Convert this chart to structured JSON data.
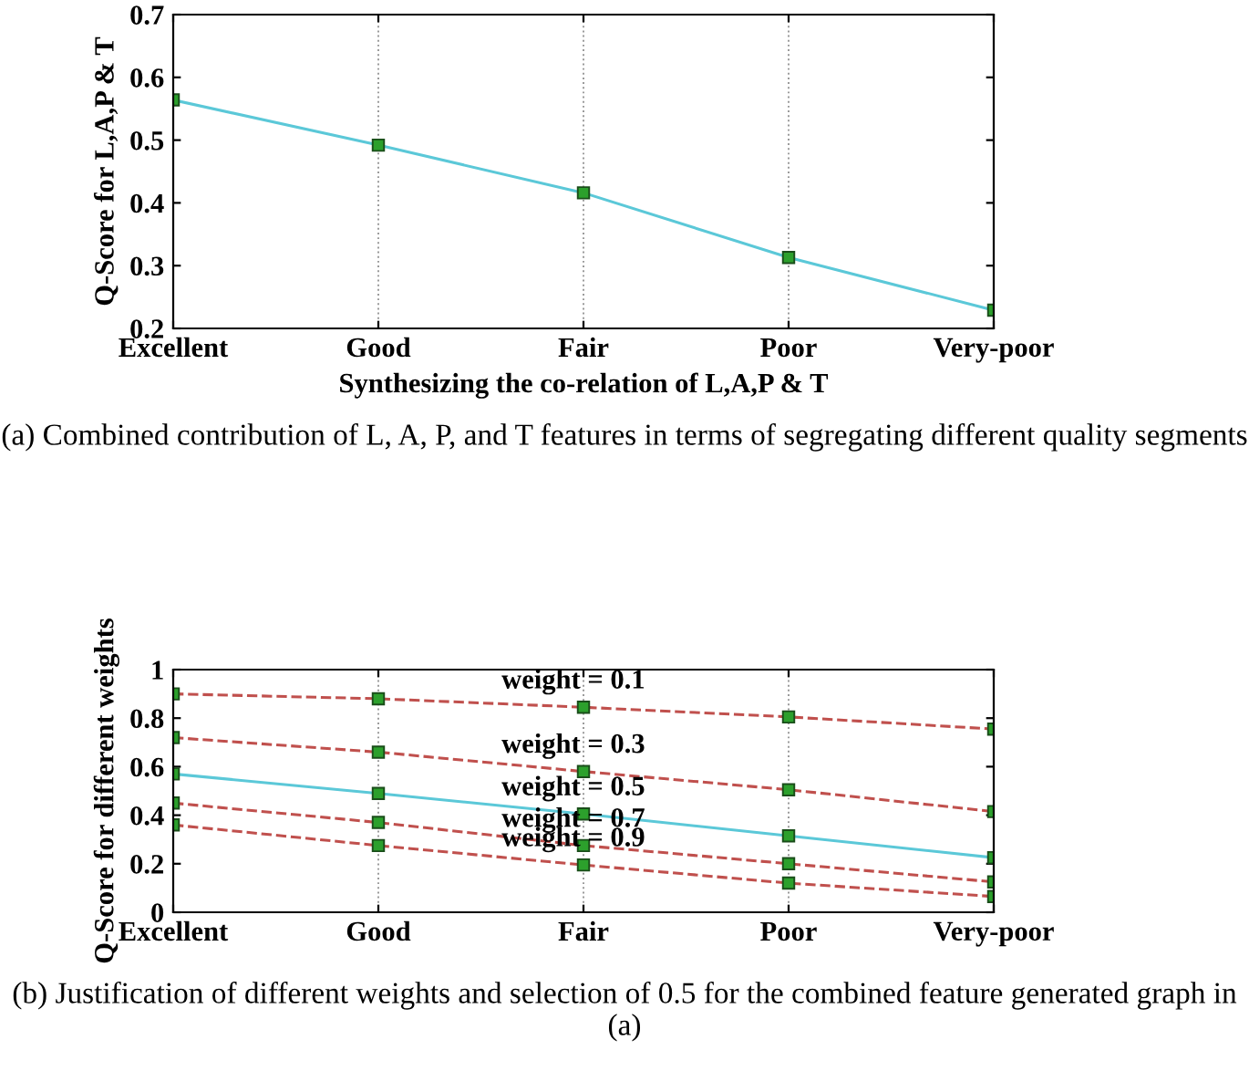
{
  "chart_data": [
    {
      "type": "line",
      "categories": [
        "Excellent",
        "Good",
        "Fair",
        "Poor",
        "Very-poor"
      ],
      "ylabel": "Q-Score for L,A,P & T",
      "xlabel": "Synthesizing the co-relation of L,A,P & T",
      "series": [
        {
          "color": "#5bc8d8",
          "values": [
            0.564,
            0.492,
            0.416,
            0.313,
            0.229
          ],
          "line_style": "solid"
        }
      ],
      "ylim": [
        0.2,
        0.7
      ],
      "yticks": [
        0.2,
        0.3,
        0.4,
        0.5,
        0.6,
        0.7
      ],
      "grid": "x",
      "marker": "square",
      "annotations": [
        "(a) Combined contribution of L, A, P, and T features in terms of segregating different quality segments"
      ]
    },
    {
      "type": "line",
      "categories": [
        "Excellent",
        "Good",
        "Fair",
        "Poor",
        "Very-poor"
      ],
      "ylabel": "Q-Score for different weights",
      "series": [
        {
          "name": "weight = 0.1",
          "color": "#c0504d",
          "line_style": "dashed",
          "values": [
            0.9,
            0.88,
            0.845,
            0.805,
            0.755
          ]
        },
        {
          "name": "weight = 0.3",
          "color": "#c0504d",
          "line_style": "dashed",
          "values": [
            0.72,
            0.66,
            0.58,
            0.505,
            0.415
          ]
        },
        {
          "name": "weight = 0.5",
          "color": "#5bc8d8",
          "line_style": "solid",
          "values": [
            0.57,
            0.49,
            0.405,
            0.315,
            0.225
          ]
        },
        {
          "name": "weight = 0.7",
          "color": "#c0504d",
          "line_style": "dashed",
          "values": [
            0.45,
            0.37,
            0.275,
            0.2,
            0.125
          ]
        },
        {
          "name": "weight = 0.9",
          "color": "#c0504d",
          "line_style": "dashed",
          "values": [
            0.36,
            0.275,
            0.195,
            0.12,
            0.065
          ]
        }
      ],
      "ylim": [
        0,
        1
      ],
      "yticks": [
        0,
        0.2,
        0.4,
        0.6,
        0.8,
        1
      ],
      "grid": "x",
      "marker": "square",
      "annotations": [
        "(b) Justification of different weights and selection of 0.5 for the combined feature generated graph in (a)"
      ]
    }
  ]
}
